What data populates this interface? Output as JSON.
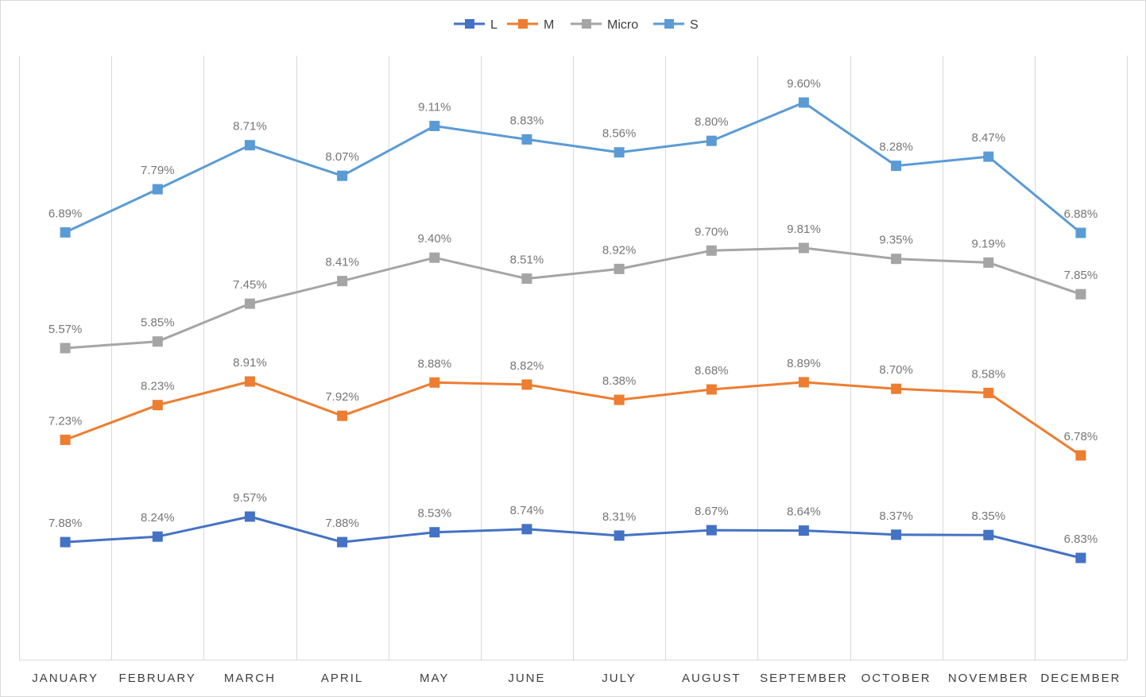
{
  "chart_data": {
    "type": "line",
    "title": "",
    "xlabel": "",
    "ylabel": "",
    "categories": [
      "JANUARY",
      "FEBRUARY",
      "MARCH",
      "APRIL",
      "MAY",
      "JUNE",
      "JULY",
      "AUGUST",
      "SEPTEMBER",
      "OCTOBER",
      "NOVEMBER",
      "DECEMBER"
    ],
    "legend_position": "top",
    "grid": "vertical",
    "series": [
      {
        "name": "L",
        "color": "#4472C4",
        "values": [
          7.88,
          8.24,
          9.57,
          7.88,
          8.53,
          8.74,
          8.31,
          8.67,
          8.64,
          8.37,
          8.35,
          6.83
        ],
        "labels": [
          "7.88%",
          "8.24%",
          "9.57%",
          "7.88%",
          "8.53%",
          "8.74%",
          "8.31%",
          "8.67%",
          "8.64%",
          "8.37%",
          "8.35%",
          "6.83%"
        ]
      },
      {
        "name": "M",
        "color": "#ED7D31",
        "values": [
          7.23,
          8.23,
          8.91,
          7.92,
          8.88,
          8.82,
          8.38,
          8.68,
          8.89,
          8.7,
          8.58,
          6.78
        ],
        "labels": [
          "7.23%",
          "8.23%",
          "8.91%",
          "7.92%",
          "8.88%",
          "8.82%",
          "8.38%",
          "8.68%",
          "8.89%",
          "8.70%",
          "8.58%",
          "6.78%"
        ]
      },
      {
        "name": "Micro",
        "color": "#A5A5A5",
        "values": [
          5.57,
          5.85,
          7.45,
          8.41,
          9.4,
          8.51,
          8.92,
          9.7,
          9.81,
          9.35,
          9.19,
          7.85
        ],
        "labels": [
          "5.57%",
          "5.85%",
          "7.45%",
          "8.41%",
          "9.40%",
          "8.51%",
          "8.92%",
          "9.70%",
          "9.81%",
          "9.35%",
          "9.19%",
          "7.85%"
        ]
      },
      {
        "name": "S",
        "color": "#5B9BD5",
        "values": [
          6.89,
          7.79,
          8.71,
          8.07,
          9.11,
          8.83,
          8.56,
          8.8,
          9.6,
          8.28,
          8.47,
          6.88
        ],
        "labels": [
          "6.89%",
          "7.79%",
          "8.71%",
          "8.07%",
          "9.11%",
          "8.83%",
          "8.56%",
          "8.80%",
          "9.60%",
          "8.28%",
          "8.47%",
          "6.88%"
        ]
      }
    ]
  }
}
